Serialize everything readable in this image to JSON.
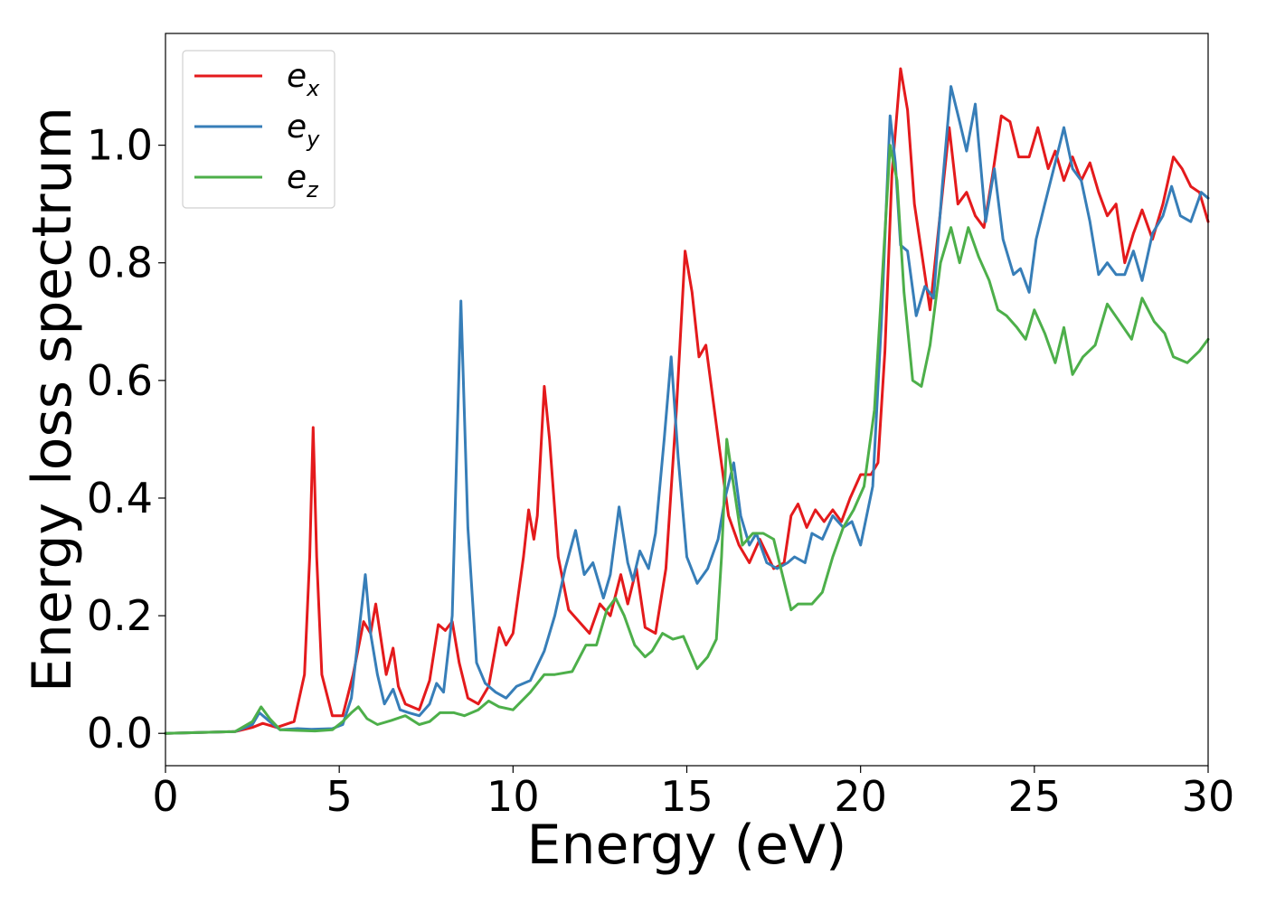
{
  "chart_data": {
    "type": "line",
    "xlabel": "Energy (eV)",
    "ylabel": "Energy loss spectrum",
    "xlim": [
      0,
      30
    ],
    "ylim": [
      -0.055,
      1.19
    ],
    "xticks": [
      0,
      5,
      10,
      15,
      20,
      25,
      30
    ],
    "xtick_labels": [
      "0",
      "5",
      "10",
      "15",
      "20",
      "25",
      "30"
    ],
    "yticks": [
      0.0,
      0.2,
      0.4,
      0.6,
      0.8,
      1.0
    ],
    "ytick_labels": [
      "0.0",
      "0.2",
      "0.4",
      "0.6",
      "0.8",
      "1.0"
    ],
    "grid": false,
    "legend_position": "top-left",
    "series": [
      {
        "name": "e",
        "sub": "x",
        "color": "#e41a1c",
        "points": [
          [
            0,
            0
          ],
          [
            2,
            0.003
          ],
          [
            2.5,
            0.01
          ],
          [
            2.8,
            0.017
          ],
          [
            3.2,
            0.01
          ],
          [
            3.7,
            0.02
          ],
          [
            4.0,
            0.1
          ],
          [
            4.15,
            0.3
          ],
          [
            4.25,
            0.52
          ],
          [
            4.35,
            0.3
          ],
          [
            4.5,
            0.1
          ],
          [
            4.8,
            0.03
          ],
          [
            5.1,
            0.03
          ],
          [
            5.4,
            0.1
          ],
          [
            5.7,
            0.19
          ],
          [
            5.9,
            0.17
          ],
          [
            6.05,
            0.22
          ],
          [
            6.2,
            0.16
          ],
          [
            6.35,
            0.1
          ],
          [
            6.55,
            0.145
          ],
          [
            6.7,
            0.08
          ],
          [
            6.9,
            0.05
          ],
          [
            7.3,
            0.04
          ],
          [
            7.6,
            0.09
          ],
          [
            7.85,
            0.185
          ],
          [
            8.05,
            0.175
          ],
          [
            8.25,
            0.19
          ],
          [
            8.45,
            0.12
          ],
          [
            8.7,
            0.06
          ],
          [
            9.0,
            0.05
          ],
          [
            9.3,
            0.08
          ],
          [
            9.6,
            0.18
          ],
          [
            9.8,
            0.15
          ],
          [
            10.0,
            0.17
          ],
          [
            10.3,
            0.3
          ],
          [
            10.45,
            0.38
          ],
          [
            10.6,
            0.33
          ],
          [
            10.7,
            0.37
          ],
          [
            10.9,
            0.59
          ],
          [
            11.05,
            0.5
          ],
          [
            11.3,
            0.3
          ],
          [
            11.6,
            0.21
          ],
          [
            12.2,
            0.17
          ],
          [
            12.5,
            0.22
          ],
          [
            12.8,
            0.2
          ],
          [
            13.1,
            0.27
          ],
          [
            13.3,
            0.22
          ],
          [
            13.55,
            0.28
          ],
          [
            13.8,
            0.18
          ],
          [
            14.1,
            0.17
          ],
          [
            14.4,
            0.28
          ],
          [
            14.7,
            0.55
          ],
          [
            14.95,
            0.82
          ],
          [
            15.15,
            0.75
          ],
          [
            15.35,
            0.64
          ],
          [
            15.55,
            0.66
          ],
          [
            15.75,
            0.57
          ],
          [
            15.95,
            0.48
          ],
          [
            16.2,
            0.37
          ],
          [
            16.5,
            0.32
          ],
          [
            16.8,
            0.29
          ],
          [
            17.1,
            0.33
          ],
          [
            17.5,
            0.28
          ],
          [
            17.8,
            0.29
          ],
          [
            18.0,
            0.37
          ],
          [
            18.2,
            0.39
          ],
          [
            18.45,
            0.35
          ],
          [
            18.7,
            0.38
          ],
          [
            18.95,
            0.36
          ],
          [
            19.2,
            0.38
          ],
          [
            19.45,
            0.36
          ],
          [
            19.7,
            0.4
          ],
          [
            20.0,
            0.44
          ],
          [
            20.3,
            0.44
          ],
          [
            20.5,
            0.46
          ],
          [
            20.7,
            0.65
          ],
          [
            20.9,
            0.95
          ],
          [
            21.15,
            1.13
          ],
          [
            21.35,
            1.06
          ],
          [
            21.55,
            0.9
          ],
          [
            21.75,
            0.82
          ],
          [
            22.0,
            0.72
          ],
          [
            22.25,
            0.86
          ],
          [
            22.55,
            1.03
          ],
          [
            22.8,
            0.9
          ],
          [
            23.05,
            0.92
          ],
          [
            23.3,
            0.88
          ],
          [
            23.55,
            0.86
          ],
          [
            23.8,
            0.95
          ],
          [
            24.05,
            1.05
          ],
          [
            24.3,
            1.04
          ],
          [
            24.55,
            0.98
          ],
          [
            24.85,
            0.98
          ],
          [
            25.1,
            1.03
          ],
          [
            25.4,
            0.96
          ],
          [
            25.6,
            0.99
          ],
          [
            25.85,
            0.94
          ],
          [
            26.1,
            0.98
          ],
          [
            26.35,
            0.94
          ],
          [
            26.6,
            0.97
          ],
          [
            26.85,
            0.92
          ],
          [
            27.1,
            0.88
          ],
          [
            27.35,
            0.9
          ],
          [
            27.6,
            0.8
          ],
          [
            27.85,
            0.85
          ],
          [
            28.1,
            0.89
          ],
          [
            28.4,
            0.84
          ],
          [
            28.7,
            0.9
          ],
          [
            29.0,
            0.98
          ],
          [
            29.25,
            0.96
          ],
          [
            29.5,
            0.93
          ],
          [
            29.75,
            0.92
          ],
          [
            30.0,
            0.87
          ]
        ]
      },
      {
        "name": "e",
        "sub": "y",
        "color": "#377eb8",
        "points": [
          [
            0,
            0
          ],
          [
            2,
            0.003
          ],
          [
            2.5,
            0.015
          ],
          [
            2.7,
            0.035
          ],
          [
            3.0,
            0.02
          ],
          [
            3.3,
            0.006
          ],
          [
            3.8,
            0.008
          ],
          [
            4.2,
            0.007
          ],
          [
            4.8,
            0.008
          ],
          [
            5.1,
            0.015
          ],
          [
            5.35,
            0.06
          ],
          [
            5.6,
            0.19
          ],
          [
            5.75,
            0.27
          ],
          [
            5.9,
            0.17
          ],
          [
            6.1,
            0.1
          ],
          [
            6.3,
            0.05
          ],
          [
            6.55,
            0.075
          ],
          [
            6.75,
            0.04
          ],
          [
            7.0,
            0.035
          ],
          [
            7.3,
            0.03
          ],
          [
            7.6,
            0.05
          ],
          [
            7.8,
            0.085
          ],
          [
            8.0,
            0.07
          ],
          [
            8.25,
            0.2
          ],
          [
            8.5,
            0.735
          ],
          [
            8.7,
            0.35
          ],
          [
            8.95,
            0.12
          ],
          [
            9.2,
            0.085
          ],
          [
            9.5,
            0.07
          ],
          [
            9.8,
            0.06
          ],
          [
            10.1,
            0.08
          ],
          [
            10.5,
            0.09
          ],
          [
            10.9,
            0.14
          ],
          [
            11.2,
            0.2
          ],
          [
            11.5,
            0.28
          ],
          [
            11.8,
            0.345
          ],
          [
            12.05,
            0.27
          ],
          [
            12.3,
            0.29
          ],
          [
            12.6,
            0.23
          ],
          [
            12.8,
            0.27
          ],
          [
            13.05,
            0.385
          ],
          [
            13.3,
            0.29
          ],
          [
            13.45,
            0.26
          ],
          [
            13.65,
            0.31
          ],
          [
            13.9,
            0.28
          ],
          [
            14.1,
            0.34
          ],
          [
            14.35,
            0.5
          ],
          [
            14.55,
            0.64
          ],
          [
            14.75,
            0.47
          ],
          [
            15.0,
            0.3
          ],
          [
            15.3,
            0.255
          ],
          [
            15.6,
            0.28
          ],
          [
            15.9,
            0.33
          ],
          [
            16.1,
            0.4
          ],
          [
            16.35,
            0.46
          ],
          [
            16.55,
            0.37
          ],
          [
            16.8,
            0.32
          ],
          [
            17.0,
            0.34
          ],
          [
            17.3,
            0.29
          ],
          [
            17.6,
            0.28
          ],
          [
            17.9,
            0.29
          ],
          [
            18.1,
            0.3
          ],
          [
            18.4,
            0.29
          ],
          [
            18.6,
            0.34
          ],
          [
            18.9,
            0.33
          ],
          [
            19.2,
            0.37
          ],
          [
            19.5,
            0.35
          ],
          [
            19.75,
            0.36
          ],
          [
            20.0,
            0.32
          ],
          [
            20.35,
            0.42
          ],
          [
            20.6,
            0.7
          ],
          [
            20.85,
            1.05
          ],
          [
            21.0,
            0.97
          ],
          [
            21.15,
            0.83
          ],
          [
            21.35,
            0.82
          ],
          [
            21.6,
            0.71
          ],
          [
            21.85,
            0.76
          ],
          [
            22.1,
            0.74
          ],
          [
            22.35,
            0.93
          ],
          [
            22.6,
            1.1
          ],
          [
            22.85,
            1.04
          ],
          [
            23.05,
            0.99
          ],
          [
            23.3,
            1.07
          ],
          [
            23.6,
            0.87
          ],
          [
            23.85,
            0.96
          ],
          [
            24.1,
            0.84
          ],
          [
            24.4,
            0.78
          ],
          [
            24.6,
            0.79
          ],
          [
            24.85,
            0.75
          ],
          [
            25.05,
            0.84
          ],
          [
            25.3,
            0.9
          ],
          [
            25.6,
            0.97
          ],
          [
            25.85,
            1.03
          ],
          [
            26.1,
            0.96
          ],
          [
            26.35,
            0.94
          ],
          [
            26.6,
            0.87
          ],
          [
            26.85,
            0.78
          ],
          [
            27.1,
            0.8
          ],
          [
            27.35,
            0.78
          ],
          [
            27.6,
            0.78
          ],
          [
            27.85,
            0.82
          ],
          [
            28.1,
            0.77
          ],
          [
            28.4,
            0.85
          ],
          [
            28.7,
            0.88
          ],
          [
            28.95,
            0.93
          ],
          [
            29.2,
            0.88
          ],
          [
            29.5,
            0.87
          ],
          [
            29.8,
            0.92
          ],
          [
            30.0,
            0.91
          ]
        ]
      },
      {
        "name": "e",
        "sub": "z",
        "color": "#4daf4a",
        "points": [
          [
            0,
            0
          ],
          [
            2,
            0.003
          ],
          [
            2.5,
            0.02
          ],
          [
            2.75,
            0.045
          ],
          [
            3.0,
            0.025
          ],
          [
            3.3,
            0.006
          ],
          [
            3.8,
            0.005
          ],
          [
            4.3,
            0.004
          ],
          [
            4.8,
            0.006
          ],
          [
            5.1,
            0.02
          ],
          [
            5.35,
            0.035
          ],
          [
            5.55,
            0.045
          ],
          [
            5.8,
            0.025
          ],
          [
            6.1,
            0.015
          ],
          [
            6.5,
            0.022
          ],
          [
            6.9,
            0.03
          ],
          [
            7.3,
            0.015
          ],
          [
            7.6,
            0.02
          ],
          [
            7.9,
            0.035
          ],
          [
            8.3,
            0.035
          ],
          [
            8.6,
            0.03
          ],
          [
            9.0,
            0.04
          ],
          [
            9.3,
            0.055
          ],
          [
            9.6,
            0.045
          ],
          [
            10.0,
            0.04
          ],
          [
            10.5,
            0.07
          ],
          [
            10.9,
            0.1
          ],
          [
            11.2,
            0.1
          ],
          [
            11.7,
            0.105
          ],
          [
            12.1,
            0.15
          ],
          [
            12.4,
            0.15
          ],
          [
            12.7,
            0.21
          ],
          [
            12.95,
            0.23
          ],
          [
            13.2,
            0.2
          ],
          [
            13.5,
            0.15
          ],
          [
            13.8,
            0.13
          ],
          [
            14.0,
            0.14
          ],
          [
            14.3,
            0.17
          ],
          [
            14.6,
            0.16
          ],
          [
            14.9,
            0.165
          ],
          [
            15.3,
            0.11
          ],
          [
            15.6,
            0.13
          ],
          [
            15.85,
            0.16
          ],
          [
            16.0,
            0.3
          ],
          [
            16.15,
            0.5
          ],
          [
            16.35,
            0.42
          ],
          [
            16.6,
            0.32
          ],
          [
            16.9,
            0.34
          ],
          [
            17.2,
            0.34
          ],
          [
            17.5,
            0.33
          ],
          [
            17.75,
            0.27
          ],
          [
            18.0,
            0.21
          ],
          [
            18.2,
            0.22
          ],
          [
            18.6,
            0.22
          ],
          [
            18.9,
            0.24
          ],
          [
            19.2,
            0.3
          ],
          [
            19.5,
            0.35
          ],
          [
            19.8,
            0.38
          ],
          [
            20.1,
            0.42
          ],
          [
            20.4,
            0.55
          ],
          [
            20.65,
            0.8
          ],
          [
            20.85,
            1.0
          ],
          [
            21.05,
            0.94
          ],
          [
            21.25,
            0.75
          ],
          [
            21.5,
            0.6
          ],
          [
            21.75,
            0.59
          ],
          [
            22.0,
            0.66
          ],
          [
            22.3,
            0.8
          ],
          [
            22.6,
            0.86
          ],
          [
            22.85,
            0.8
          ],
          [
            23.1,
            0.86
          ],
          [
            23.4,
            0.81
          ],
          [
            23.7,
            0.77
          ],
          [
            23.95,
            0.72
          ],
          [
            24.2,
            0.71
          ],
          [
            24.5,
            0.69
          ],
          [
            24.75,
            0.67
          ],
          [
            25.0,
            0.72
          ],
          [
            25.3,
            0.68
          ],
          [
            25.6,
            0.63
          ],
          [
            25.85,
            0.69
          ],
          [
            26.1,
            0.61
          ],
          [
            26.4,
            0.64
          ],
          [
            26.75,
            0.66
          ],
          [
            27.1,
            0.73
          ],
          [
            27.45,
            0.7
          ],
          [
            27.8,
            0.67
          ],
          [
            28.1,
            0.74
          ],
          [
            28.45,
            0.7
          ],
          [
            28.75,
            0.68
          ],
          [
            29.0,
            0.64
          ],
          [
            29.4,
            0.63
          ],
          [
            29.75,
            0.65
          ],
          [
            30.0,
            0.67
          ]
        ]
      }
    ]
  }
}
